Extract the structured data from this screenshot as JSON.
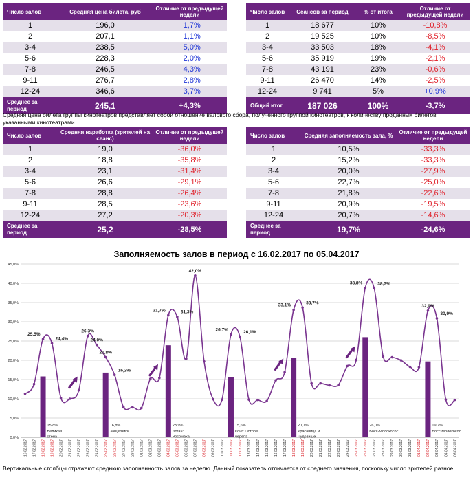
{
  "table1": {
    "headers": [
      "Число залов",
      "Средняя цена билета, руб",
      "Отличие от предыдущей недели"
    ],
    "rows": [
      [
        "1",
        "196,0",
        "+1,7%"
      ],
      [
        "2",
        "207,1",
        "+1,1%"
      ],
      [
        "3-4",
        "238,5",
        "+5,0%"
      ],
      [
        "5-6",
        "228,3",
        "+2,0%"
      ],
      [
        "7-8",
        "246,5",
        "+4,3%"
      ],
      [
        "9-11",
        "276,7",
        "+2,8%"
      ],
      [
        "12-24",
        "346,6",
        "+3,7%"
      ]
    ],
    "total": [
      "Среднее за период",
      "245,1",
      "+4,3%"
    ]
  },
  "table2": {
    "headers": [
      "Число залов",
      "Сеансов за период",
      "% от итога",
      "Отличие от предыдущей недели"
    ],
    "rows": [
      [
        "1",
        "18 677",
        "10%",
        "-10,8%"
      ],
      [
        "2",
        "19 525",
        "10%",
        "-8,5%"
      ],
      [
        "3-4",
        "33 503",
        "18%",
        "-4,1%"
      ],
      [
        "5-6",
        "35 919",
        "19%",
        "-2,1%"
      ],
      [
        "7-8",
        "43 191",
        "23%",
        "-0,6%"
      ],
      [
        "9-11",
        "26 470",
        "14%",
        "-2,5%"
      ],
      [
        "12-24",
        "9 741",
        "5%",
        "+0,9%"
      ]
    ],
    "total": [
      "Общий итог",
      "187 026",
      "100%",
      "-3,7%"
    ]
  },
  "note1": "Средняя цена билета группы кинотеатров представляет собой отношение валового сбора, полученного группой кинотеатров, к количеству проданных билетов указанными кинотеатрами.",
  "table3": {
    "headers": [
      "Число залов",
      "Средняя наработка (зрителей на сеанс)",
      "Отличие от предыдущей недели"
    ],
    "rows": [
      [
        "1",
        "19,0",
        "-36,0%"
      ],
      [
        "2",
        "18,8",
        "-35,8%"
      ],
      [
        "3-4",
        "23,1",
        "-31,4%"
      ],
      [
        "5-6",
        "26,6",
        "-29,1%"
      ],
      [
        "7-8",
        "28,8",
        "-26,4%"
      ],
      [
        "9-11",
        "28,5",
        "-23,6%"
      ],
      [
        "12-24",
        "27,2",
        "-20,3%"
      ]
    ],
    "total": [
      "Среднее за период",
      "25,2",
      "-28,5%"
    ]
  },
  "table4": {
    "headers": [
      "Число залов",
      "Средняя заполняемость зала, %",
      "Отличие от предыдущей недели"
    ],
    "rows": [
      [
        "1",
        "10,5%",
        "-33,3%"
      ],
      [
        "2",
        "15,2%",
        "-33,3%"
      ],
      [
        "3-4",
        "20,0%",
        "-27,9%"
      ],
      [
        "5-6",
        "22,7%",
        "-25,0%"
      ],
      [
        "7-8",
        "21,8%",
        "-22,6%"
      ],
      [
        "9-11",
        "20,9%",
        "-19,5%"
      ],
      [
        "12-24",
        "20,7%",
        "-14,6%"
      ]
    ],
    "total": [
      "Среднее за период",
      "19,7%",
      "-24,6%"
    ]
  },
  "colors": {
    "header_bg": "#6b2480",
    "row_alt": "#e5e0ea",
    "positive": "#1f35d6",
    "negative": "#e0202a",
    "line": "#7a3590",
    "bars": "#6b2480"
  },
  "chart_data": {
    "type": "line",
    "title": "Заполняемость залов в период с 16.02.2017 по 05.04.2017",
    "ylim": [
      0,
      45
    ],
    "yticks": [
      "0,0%",
      "5,0%",
      "10,0%",
      "15,0%",
      "20,0%",
      "25,0%",
      "30,0%",
      "35,0%",
      "40,0%",
      "45,0%"
    ],
    "grid": true,
    "x": [
      "16.02.2017",
      "17.02.2017",
      "18.02.2017",
      "19.02.2017",
      "20.02.2017",
      "21.02.2017",
      "22.02.2017",
      "23.02.2017",
      "24.02.2017",
      "25.02.2017",
      "26.02.2017",
      "27.02.2017",
      "28.02.2017",
      "01.03.2017",
      "02.03.2017",
      "03.03.2017",
      "04.03.2017",
      "05.03.2017",
      "06.03.2017",
      "07.03.2017",
      "08.03.2017",
      "09.03.2017",
      "10.03.2017",
      "11.03.2017",
      "12.03.2017",
      "13.03.2017",
      "14.03.2017",
      "15.03.2017",
      "16.03.2017",
      "17.03.2017",
      "18.03.2017",
      "19.03.2017",
      "20.03.2017",
      "21.03.2017",
      "22.03.2017",
      "23.03.2017",
      "24.03.2017",
      "25.03.2017",
      "26.03.2017",
      "27.03.2017",
      "28.03.2017",
      "29.03.2017",
      "30.03.2017",
      "31.03.2017",
      "01.04.2017",
      "02.04.2017",
      "03.04.2017",
      "04.04.2017",
      "05.04.2017"
    ],
    "red_dates": [
      "18.02.2017",
      "19.02.2017",
      "25.02.2017",
      "26.02.2017",
      "04.03.2017",
      "05.03.2017",
      "08.03.2017",
      "11.03.2017",
      "12.03.2017",
      "18.03.2017",
      "19.03.2017",
      "25.03.2017",
      "26.03.2017",
      "01.04.2017",
      "02.04.2017"
    ],
    "series": [
      {
        "values": [
          11.3,
          13.8,
          25.5,
          24.4,
          10.2,
          10.0,
          12.2,
          26.3,
          24.0,
          20.8,
          16.2,
          7.8,
          7.8,
          7.6,
          15.2,
          15.4,
          31.7,
          31.3,
          20.4,
          42.0,
          19.7,
          9.9,
          9.8,
          26.7,
          26.1,
          9.8,
          9.7,
          9.4,
          14.8,
          16.9,
          33.1,
          33.7,
          14.0,
          14.0,
          13.5,
          13.6,
          18.5,
          20.1,
          38.8,
          38.7,
          21.0,
          20.8,
          20.0,
          18.3,
          18.2,
          32.9,
          30.9,
          9.8,
          9.7
        ]
      }
    ],
    "point_labels": [
      {
        "i": 2,
        "text": "25,5%"
      },
      {
        "i": 3,
        "text": "24,4%"
      },
      {
        "i": 7,
        "text": "26,3%"
      },
      {
        "i": 8,
        "text": "24,0%"
      },
      {
        "i": 9,
        "text": "20,8%"
      },
      {
        "i": 10,
        "text": "16,2%"
      },
      {
        "i": 16,
        "text": "31,7%"
      },
      {
        "i": 17,
        "text": "31,3%"
      },
      {
        "i": 19,
        "text": "42,0%"
      },
      {
        "i": 23,
        "text": "26,7%"
      },
      {
        "i": 24,
        "text": "26,1%"
      },
      {
        "i": 30,
        "text": "33,1%"
      },
      {
        "i": 31,
        "text": "33,7%"
      },
      {
        "i": 38,
        "text": "38,8%"
      },
      {
        "i": 39,
        "text": "38,7%"
      },
      {
        "i": 45,
        "text": "32,9%"
      },
      {
        "i": 46,
        "text": "30,9%"
      }
    ],
    "weekly_bars": [
      {
        "i": 2,
        "value": 15.8,
        "label": "15,8%",
        "film": "Великая стена"
      },
      {
        "i": 9,
        "value": 16.8,
        "label": "16,8%",
        "film": "Защитники"
      },
      {
        "i": 16,
        "value": 23.9,
        "label": "23,9%",
        "film": "Логан: Росомаха"
      },
      {
        "i": 23,
        "value": 15.6,
        "label": "15,6%",
        "film": "Конг: Остров черепа"
      },
      {
        "i": 30,
        "value": 20.7,
        "label": "20,7%",
        "film": "Красавица и Чудовище"
      },
      {
        "i": 38,
        "value": 26.0,
        "label": "26,0%",
        "film": "Босс-Молокосос"
      },
      {
        "i": 45,
        "value": 19.7,
        "label": "19,7%",
        "film": "Босс-Молокосос"
      }
    ],
    "arrows_before": [
      7,
      16,
      30,
      38
    ]
  },
  "note2": "Вертикальные столбцы отражают среднюю заполненность залов за неделю. Данный показатель отличается от среднего значения, поскольку число зрителей разное."
}
